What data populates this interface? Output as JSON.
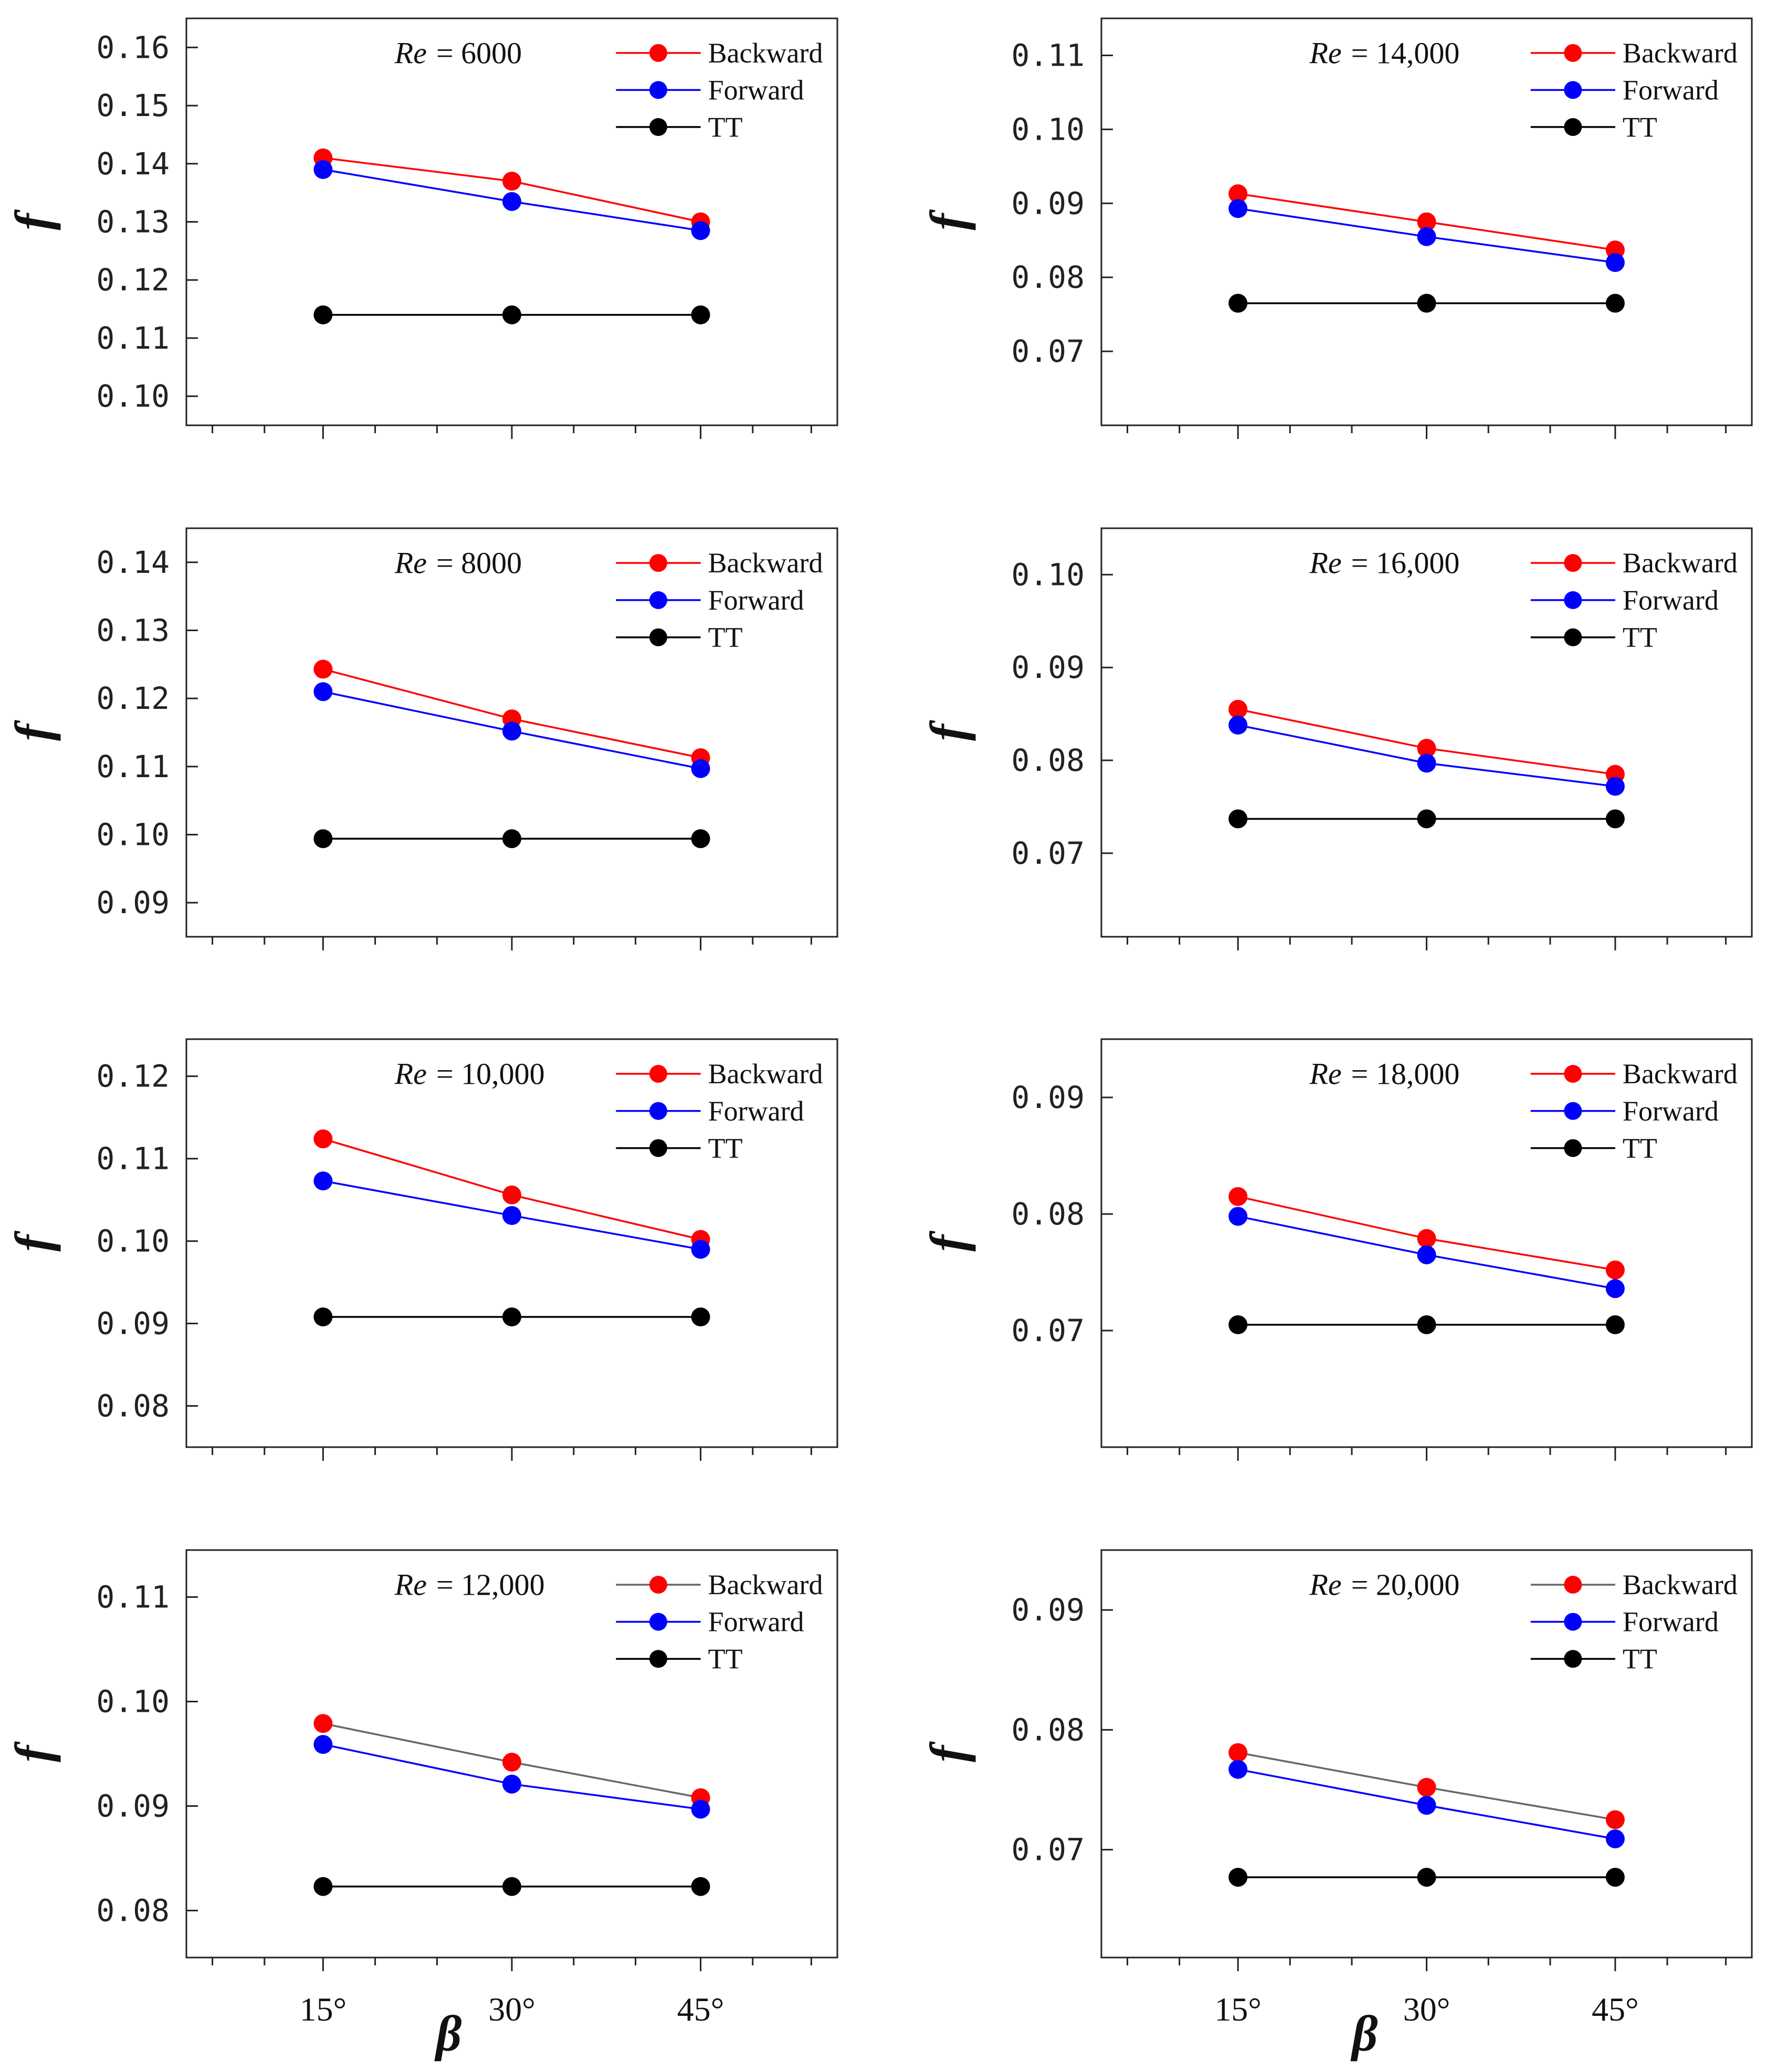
{
  "x_axis_label": "β",
  "y_axis_label": "f",
  "chart_data": [
    {
      "type": "line",
      "re_prefix": "Re",
      "re_value": "= 6000",
      "categories": [
        "15°",
        "30°",
        "45°"
      ],
      "ylim": [
        0.095,
        0.165
      ],
      "yticks": [
        "0.10",
        "0.11",
        "0.12",
        "0.13",
        "0.14",
        "0.15",
        "0.16"
      ],
      "series": [
        {
          "name": "Backward",
          "color": "#ff0000",
          "line_color": "#ff0000",
          "values": [
            0.141,
            0.137,
            0.13
          ]
        },
        {
          "name": "Forward",
          "color": "#0000ff",
          "line_color": "#0000ff",
          "values": [
            0.139,
            0.1335,
            0.1285
          ]
        },
        {
          "name": "TT",
          "color": "#000000",
          "line_color": "#000000",
          "values": [
            0.114,
            0.114,
            0.114
          ]
        }
      ]
    },
    {
      "type": "line",
      "re_prefix": "Re",
      "re_value": "= 14,000",
      "categories": [
        "15°",
        "30°",
        "45°"
      ],
      "ylim": [
        0.06,
        0.115
      ],
      "yticks": [
        "0.07",
        "0.08",
        "0.09",
        "0.10",
        "0.11"
      ],
      "series": [
        {
          "name": "Backward",
          "color": "#ff0000",
          "line_color": "#ff0000",
          "values": [
            0.0913,
            0.0875,
            0.0837
          ]
        },
        {
          "name": "Forward",
          "color": "#0000ff",
          "line_color": "#0000ff",
          "values": [
            0.0893,
            0.0855,
            0.082
          ]
        },
        {
          "name": "TT",
          "color": "#000000",
          "line_color": "#000000",
          "values": [
            0.0765,
            0.0765,
            0.0765
          ]
        }
      ]
    },
    {
      "type": "line",
      "re_prefix": "Re",
      "re_value": "= 8000",
      "categories": [
        "15°",
        "30°",
        "45°"
      ],
      "ylim": [
        0.085,
        0.145
      ],
      "yticks": [
        "0.09",
        "0.10",
        "0.11",
        "0.12",
        "0.13",
        "0.14"
      ],
      "series": [
        {
          "name": "Backward",
          "color": "#ff0000",
          "line_color": "#ff0000",
          "values": [
            0.1243,
            0.117,
            0.1113
          ]
        },
        {
          "name": "Forward",
          "color": "#0000ff",
          "line_color": "#0000ff",
          "values": [
            0.121,
            0.1152,
            0.1097
          ]
        },
        {
          "name": "TT",
          "color": "#000000",
          "line_color": "#000000",
          "values": [
            0.0994,
            0.0994,
            0.0994
          ]
        }
      ]
    },
    {
      "type": "line",
      "re_prefix": "Re",
      "re_value": "= 16,000",
      "categories": [
        "15°",
        "30°",
        "45°"
      ],
      "ylim": [
        0.061,
        0.105
      ],
      "yticks": [
        "0.07",
        "0.08",
        "0.09",
        "0.10"
      ],
      "series": [
        {
          "name": "Backward",
          "color": "#ff0000",
          "line_color": "#ff0000",
          "values": [
            0.0855,
            0.0813,
            0.0785
          ]
        },
        {
          "name": "Forward",
          "color": "#0000ff",
          "line_color": "#0000ff",
          "values": [
            0.0838,
            0.0797,
            0.0772
          ]
        },
        {
          "name": "TT",
          "color": "#000000",
          "line_color": "#000000",
          "values": [
            0.0737,
            0.0737,
            0.0737
          ]
        }
      ]
    },
    {
      "type": "line",
      "re_prefix": "Re",
      "re_value": "= 10,000",
      "categories": [
        "15°",
        "30°",
        "45°"
      ],
      "ylim": [
        0.075,
        0.1245
      ],
      "yticks": [
        "0.08",
        "0.09",
        "0.10",
        "0.11",
        "0.12"
      ],
      "series": [
        {
          "name": "Backward",
          "color": "#ff0000",
          "line_color": "#ff0000",
          "values": [
            0.1124,
            0.1056,
            0.1002
          ]
        },
        {
          "name": "Forward",
          "color": "#0000ff",
          "line_color": "#0000ff",
          "values": [
            0.1073,
            0.1031,
            0.099
          ]
        },
        {
          "name": "TT",
          "color": "#000000",
          "line_color": "#000000",
          "values": [
            0.0908,
            0.0908,
            0.0908
          ]
        }
      ]
    },
    {
      "type": "line",
      "re_prefix": "Re",
      "re_value": "= 18,000",
      "categories": [
        "15°",
        "30°",
        "45°"
      ],
      "ylim": [
        0.06,
        0.095
      ],
      "yticks": [
        "0.07",
        "0.08",
        "0.09"
      ],
      "series": [
        {
          "name": "Backward",
          "color": "#ff0000",
          "line_color": "#ff0000",
          "values": [
            0.0815,
            0.0779,
            0.0752
          ]
        },
        {
          "name": "Forward",
          "color": "#0000ff",
          "line_color": "#0000ff",
          "values": [
            0.0798,
            0.0765,
            0.0736
          ]
        },
        {
          "name": "TT",
          "color": "#000000",
          "line_color": "#000000",
          "values": [
            0.0705,
            0.0705,
            0.0705
          ]
        }
      ]
    },
    {
      "type": "line",
      "re_prefix": "Re",
      "re_value": "= 12,000",
      "categories": [
        "15°",
        "30°",
        "45°"
      ],
      "ylim": [
        0.0755,
        0.1145
      ],
      "yticks": [
        "0.08",
        "0.09",
        "0.10",
        "0.11"
      ],
      "series": [
        {
          "name": "Backward",
          "color": "#ff0000",
          "line_color": "#666666",
          "values": [
            0.0979,
            0.0942,
            0.0908
          ]
        },
        {
          "name": "Forward",
          "color": "#0000ff",
          "line_color": "#0000ff",
          "values": [
            0.0959,
            0.0921,
            0.0897
          ]
        },
        {
          "name": "TT",
          "color": "#000000",
          "line_color": "#000000",
          "values": [
            0.0823,
            0.0823,
            0.0823
          ]
        }
      ]
    },
    {
      "type": "line",
      "re_prefix": "Re",
      "re_value": "= 20,000",
      "categories": [
        "15°",
        "30°",
        "45°"
      ],
      "ylim": [
        0.061,
        0.095
      ],
      "yticks": [
        "0.07",
        "0.08",
        "0.09"
      ],
      "series": [
        {
          "name": "Backward",
          "color": "#ff0000",
          "line_color": "#666666",
          "values": [
            0.0781,
            0.0752,
            0.0725
          ]
        },
        {
          "name": "Forward",
          "color": "#0000ff",
          "line_color": "#0000ff",
          "values": [
            0.0767,
            0.0737,
            0.0709
          ]
        },
        {
          "name": "TT",
          "color": "#000000",
          "line_color": "#000000",
          "values": [
            0.0677,
            0.0677,
            0.0677
          ]
        }
      ]
    }
  ]
}
